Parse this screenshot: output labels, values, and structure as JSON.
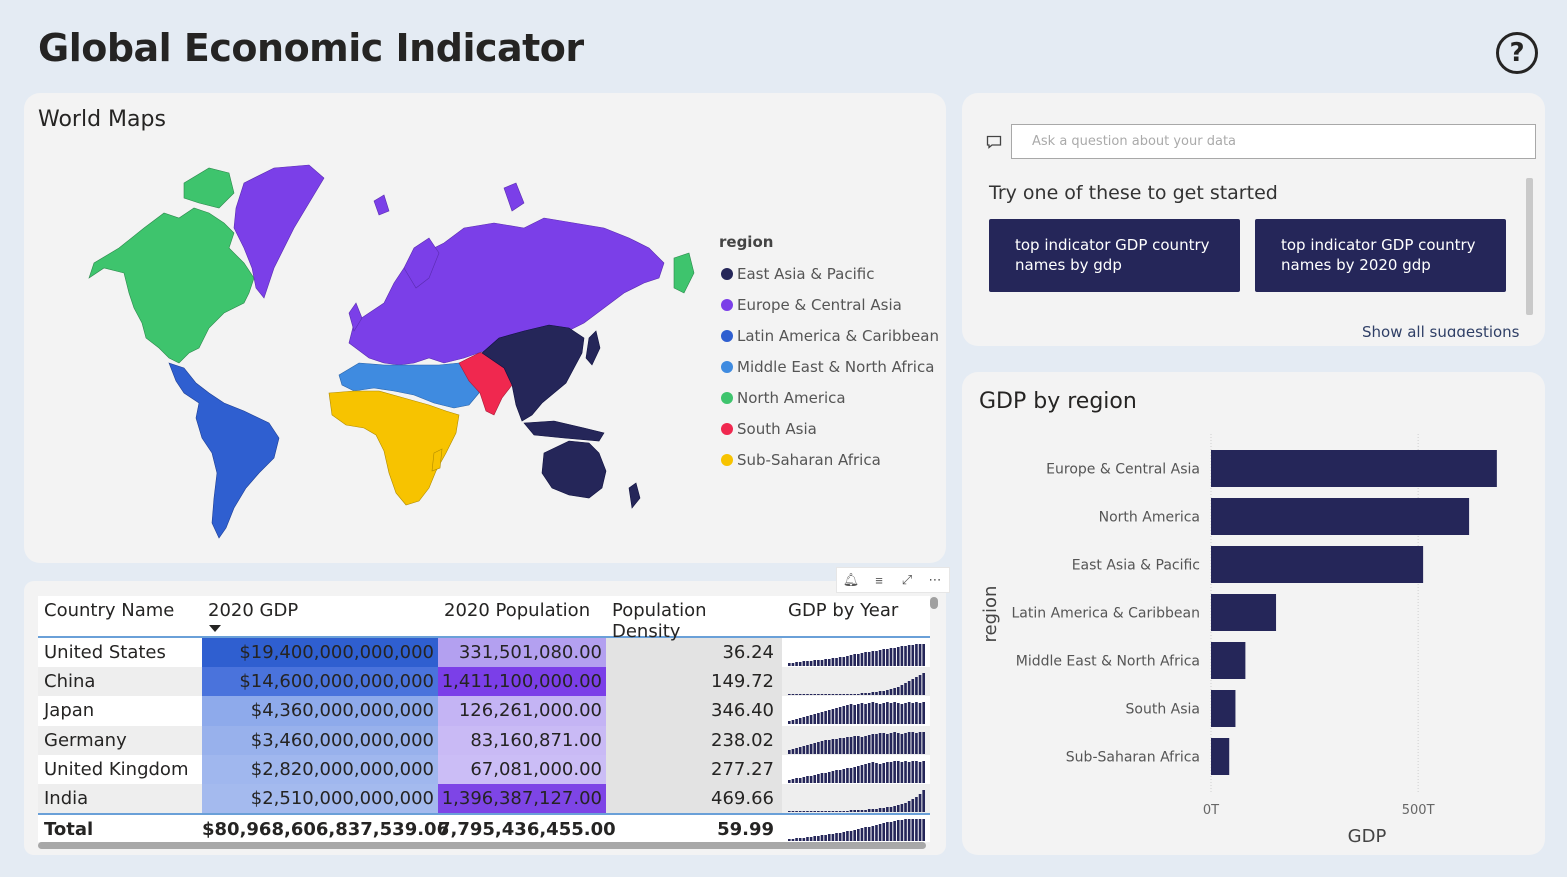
{
  "page": {
    "title": "Global Economic Indicator",
    "help_glyph": "?"
  },
  "map": {
    "title": "World Maps",
    "legend_title": "region",
    "legend": [
      {
        "label": "East Asia & Pacific",
        "color": "#252659"
      },
      {
        "label": "Europe & Central Asia",
        "color": "#7b3fe8"
      },
      {
        "label": "Latin America & Caribbean",
        "color": "#2f5fd0"
      },
      {
        "label": "Middle East & North Africa",
        "color": "#3f8be0"
      },
      {
        "label": "North America",
        "color": "#3ec46d"
      },
      {
        "label": "South Asia",
        "color": "#f0284f"
      },
      {
        "label": "Sub-Saharan Africa",
        "color": "#f7c300"
      }
    ]
  },
  "qa": {
    "placeholder": "Ask a question about your data",
    "hint": "Try one of these to get started",
    "suggestions": [
      "top indicator GDP country names by gdp",
      "top indicator GDP country names by 2020 gdp"
    ],
    "show_all": "Show all suggestions"
  },
  "chart_data": {
    "type": "bar",
    "title": "GDP by region",
    "xlabel": "GDP",
    "ylabel": "region",
    "categories": [
      "Europe & Central Asia",
      "North America",
      "East Asia & Pacific",
      "Latin America & Caribbean",
      "Middle East & North Africa",
      "South Asia",
      "Sub-Saharan Africa"
    ],
    "values": [
      690,
      623,
      512,
      157,
      83,
      59,
      44
    ],
    "x_ticks": [
      {
        "value": 0,
        "label": "0T"
      },
      {
        "value": 500,
        "label": "500T"
      }
    ],
    "xlim": [
      0,
      700
    ],
    "grid": true,
    "bar_color": "#252659"
  },
  "table": {
    "columns": [
      "Country Name",
      "2020 GDP",
      "2020 Population",
      "Population Density",
      "GDP by Year"
    ],
    "rows": [
      {
        "country": "United States",
        "gdp": "$19,400,000,000,000",
        "population": "331,501,080.00",
        "density": "36.24",
        "gdp_bg": "#2f5fd0",
        "pop_bg": "#b3a0f0",
        "spark": [
          3,
          3,
          4,
          4,
          5,
          5,
          5,
          6,
          6,
          6,
          7,
          7,
          8,
          8,
          9,
          9,
          10,
          11,
          12,
          12,
          13,
          14,
          14,
          15,
          15,
          16,
          17,
          17,
          18,
          18,
          19,
          20,
          20,
          21,
          21,
          22,
          22,
          22
        ]
      },
      {
        "country": "China",
        "gdp": "$14,600,000,000,000",
        "population": "1,411,100,000.00",
        "density": "149.72",
        "gdp_bg": "#4a73dc",
        "pop_bg": "#7b3fe8",
        "spark": [
          1,
          1,
          1,
          1,
          1,
          1,
          1,
          1,
          1,
          1,
          1,
          1,
          1,
          1,
          1,
          1,
          1,
          1,
          1,
          1,
          2,
          2,
          2,
          3,
          3,
          4,
          4,
          5,
          6,
          7,
          8,
          10,
          12,
          14,
          16,
          18,
          20,
          22
        ]
      },
      {
        "country": "Japan",
        "gdp": "$4,360,000,000,000",
        "population": "126,261,000.00",
        "density": "346.40",
        "gdp_bg": "#8eaaeb",
        "pop_bg": "#c4b4f4",
        "spark": [
          3,
          4,
          5,
          6,
          7,
          8,
          9,
          10,
          11,
          12,
          13,
          14,
          15,
          16,
          17,
          18,
          19,
          20,
          19,
          20,
          21,
          20,
          21,
          22,
          21,
          20,
          21,
          22,
          21,
          22,
          21,
          20,
          21,
          22,
          21,
          22,
          21,
          22
        ]
      },
      {
        "country": "Germany",
        "gdp": "$3,460,000,000,000",
        "population": "83,160,871.00",
        "density": "238.02",
        "gdp_bg": "#98b1ec",
        "pop_bg": "#c9baf5",
        "spark": [
          4,
          5,
          6,
          7,
          8,
          9,
          10,
          11,
          12,
          13,
          14,
          14,
          15,
          15,
          16,
          16,
          17,
          17,
          18,
          18,
          17,
          18,
          19,
          20,
          20,
          21,
          21,
          20,
          21,
          22,
          21,
          20,
          21,
          22,
          22,
          21,
          22,
          22
        ]
      },
      {
        "country": "United Kingdom",
        "gdp": "$2,820,000,000,000",
        "population": "67,081,000.00",
        "density": "277.27",
        "gdp_bg": "#a0b7ee",
        "pop_bg": "#cbbdf6",
        "spark": [
          3,
          4,
          5,
          5,
          6,
          7,
          7,
          8,
          9,
          10,
          10,
          11,
          12,
          13,
          13,
          14,
          15,
          15,
          16,
          17,
          18,
          19,
          20,
          21,
          20,
          19,
          20,
          21,
          21,
          22,
          22,
          21,
          22,
          21,
          22,
          22,
          21,
          22
        ]
      },
      {
        "country": "India",
        "gdp": "$2,510,000,000,000",
        "population": "1,396,387,127.00",
        "density": "469.66",
        "gdp_bg": "#a4baee",
        "pop_bg": "#7e45e6",
        "spark": [
          1,
          1,
          1,
          1,
          1,
          1,
          1,
          1,
          1,
          1,
          1,
          1,
          1,
          1,
          1,
          1,
          1,
          2,
          2,
          2,
          2,
          2,
          3,
          3,
          3,
          4,
          4,
          5,
          5,
          6,
          7,
          8,
          9,
          11,
          13,
          15,
          18,
          22
        ]
      }
    ],
    "total": {
      "label": "Total",
      "gdp": "$80,968,606,837,539.06",
      "population": "7,795,436,455.00",
      "density": "59.99",
      "spark": [
        2,
        2,
        3,
        3,
        3,
        4,
        4,
        5,
        5,
        6,
        6,
        7,
        7,
        8,
        8,
        9,
        10,
        10,
        11,
        12,
        13,
        14,
        14,
        15,
        16,
        17,
        18,
        19,
        19,
        20,
        21,
        21,
        22,
        22,
        22,
        22,
        22,
        22
      ]
    }
  }
}
